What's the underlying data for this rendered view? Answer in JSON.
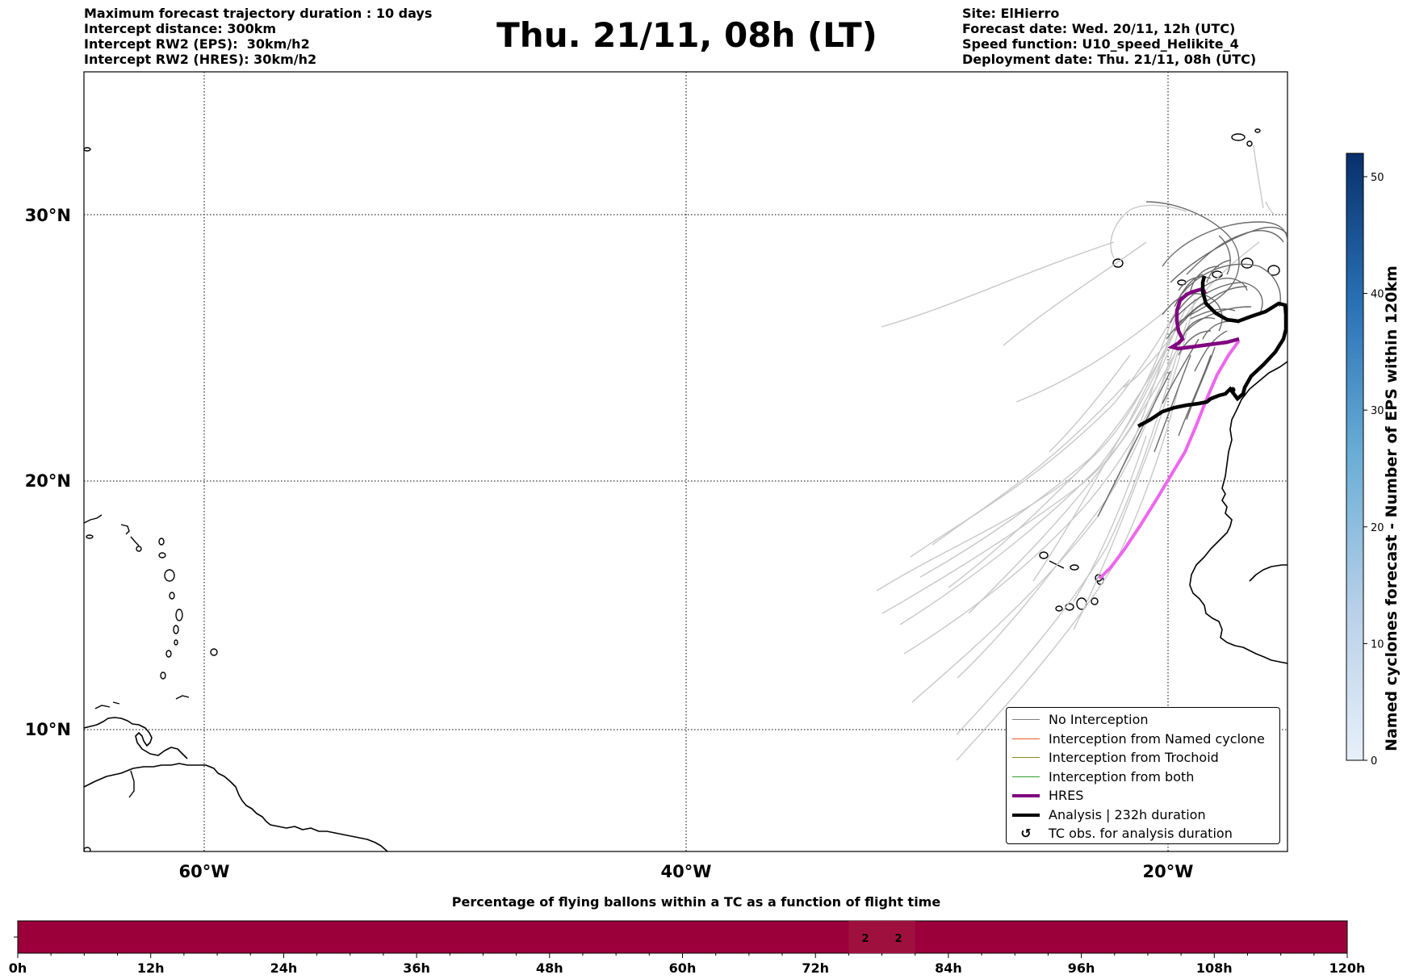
{
  "header": {
    "left_lines": [
      "Maximum forecast trajectory duration : 10 days",
      "Intercept distance: 300km",
      "Intercept RW2 (EPS):  30km/h2",
      "Intercept RW2 (HRES): 30km/h2"
    ],
    "title": "Thu. 21/11, 08h (LT)",
    "right_lines": [
      "Site: ElHierro",
      "Forecast date: Wed. 20/11, 12h (UTC)",
      "Speed function: U10_speed_Helikite_4",
      "Deployment date: Thu. 21/11, 08h (UTC)"
    ]
  },
  "map": {
    "lat_labels": [
      "30°N",
      "20°N",
      "10°N"
    ],
    "lon_labels": [
      "60°W",
      "40°W",
      "20°W"
    ],
    "hres_color": "#800080",
    "hres_early_color": "#ee66ee",
    "analysis_color": "#000000",
    "ensemble_color": "#c8c8c8"
  },
  "legend": [
    {
      "label": "No Interception",
      "color": "#808080",
      "style": "thin"
    },
    {
      "label": "Interception from Named cyclone",
      "color": "#e8572a",
      "style": "thin"
    },
    {
      "label": "Interception from Trochoid",
      "color": "#8a8a1a",
      "style": "thin"
    },
    {
      "label": "Interception from both",
      "color": "#2ca02c",
      "style": "thin"
    },
    {
      "label": "HRES",
      "color": "#800080",
      "style": "thick"
    },
    {
      "label": "Analysis | 232h duration",
      "color": "#000000",
      "style": "thick"
    },
    {
      "label": "TC obs. for analysis duration",
      "color": "#000000",
      "style": "marker"
    }
  ],
  "colorbar": {
    "title": "Named cyclones forecast - Number of EPS within 120km",
    "ticks": [
      "0",
      "10",
      "20",
      "30",
      "40",
      "50"
    ],
    "min": 0,
    "max": 52,
    "color_low": "#e8f0fa",
    "color_high": "#08306b"
  },
  "timebar": {
    "title": "Percentage of flying ballons within a TC as a function of flight time",
    "tick_labels": [
      "0h",
      "12h",
      "24h",
      "36h",
      "48h",
      "60h",
      "72h",
      "84h",
      "96h",
      "108h",
      "120h"
    ],
    "range_hours": [
      0,
      120
    ],
    "base_color": "#9b003b",
    "highlight_color": "#a0103f",
    "cells": [
      {
        "from_hour": 75,
        "to_hour": 78,
        "value": "2"
      },
      {
        "from_hour": 78,
        "to_hour": 81,
        "value": "2"
      }
    ]
  }
}
